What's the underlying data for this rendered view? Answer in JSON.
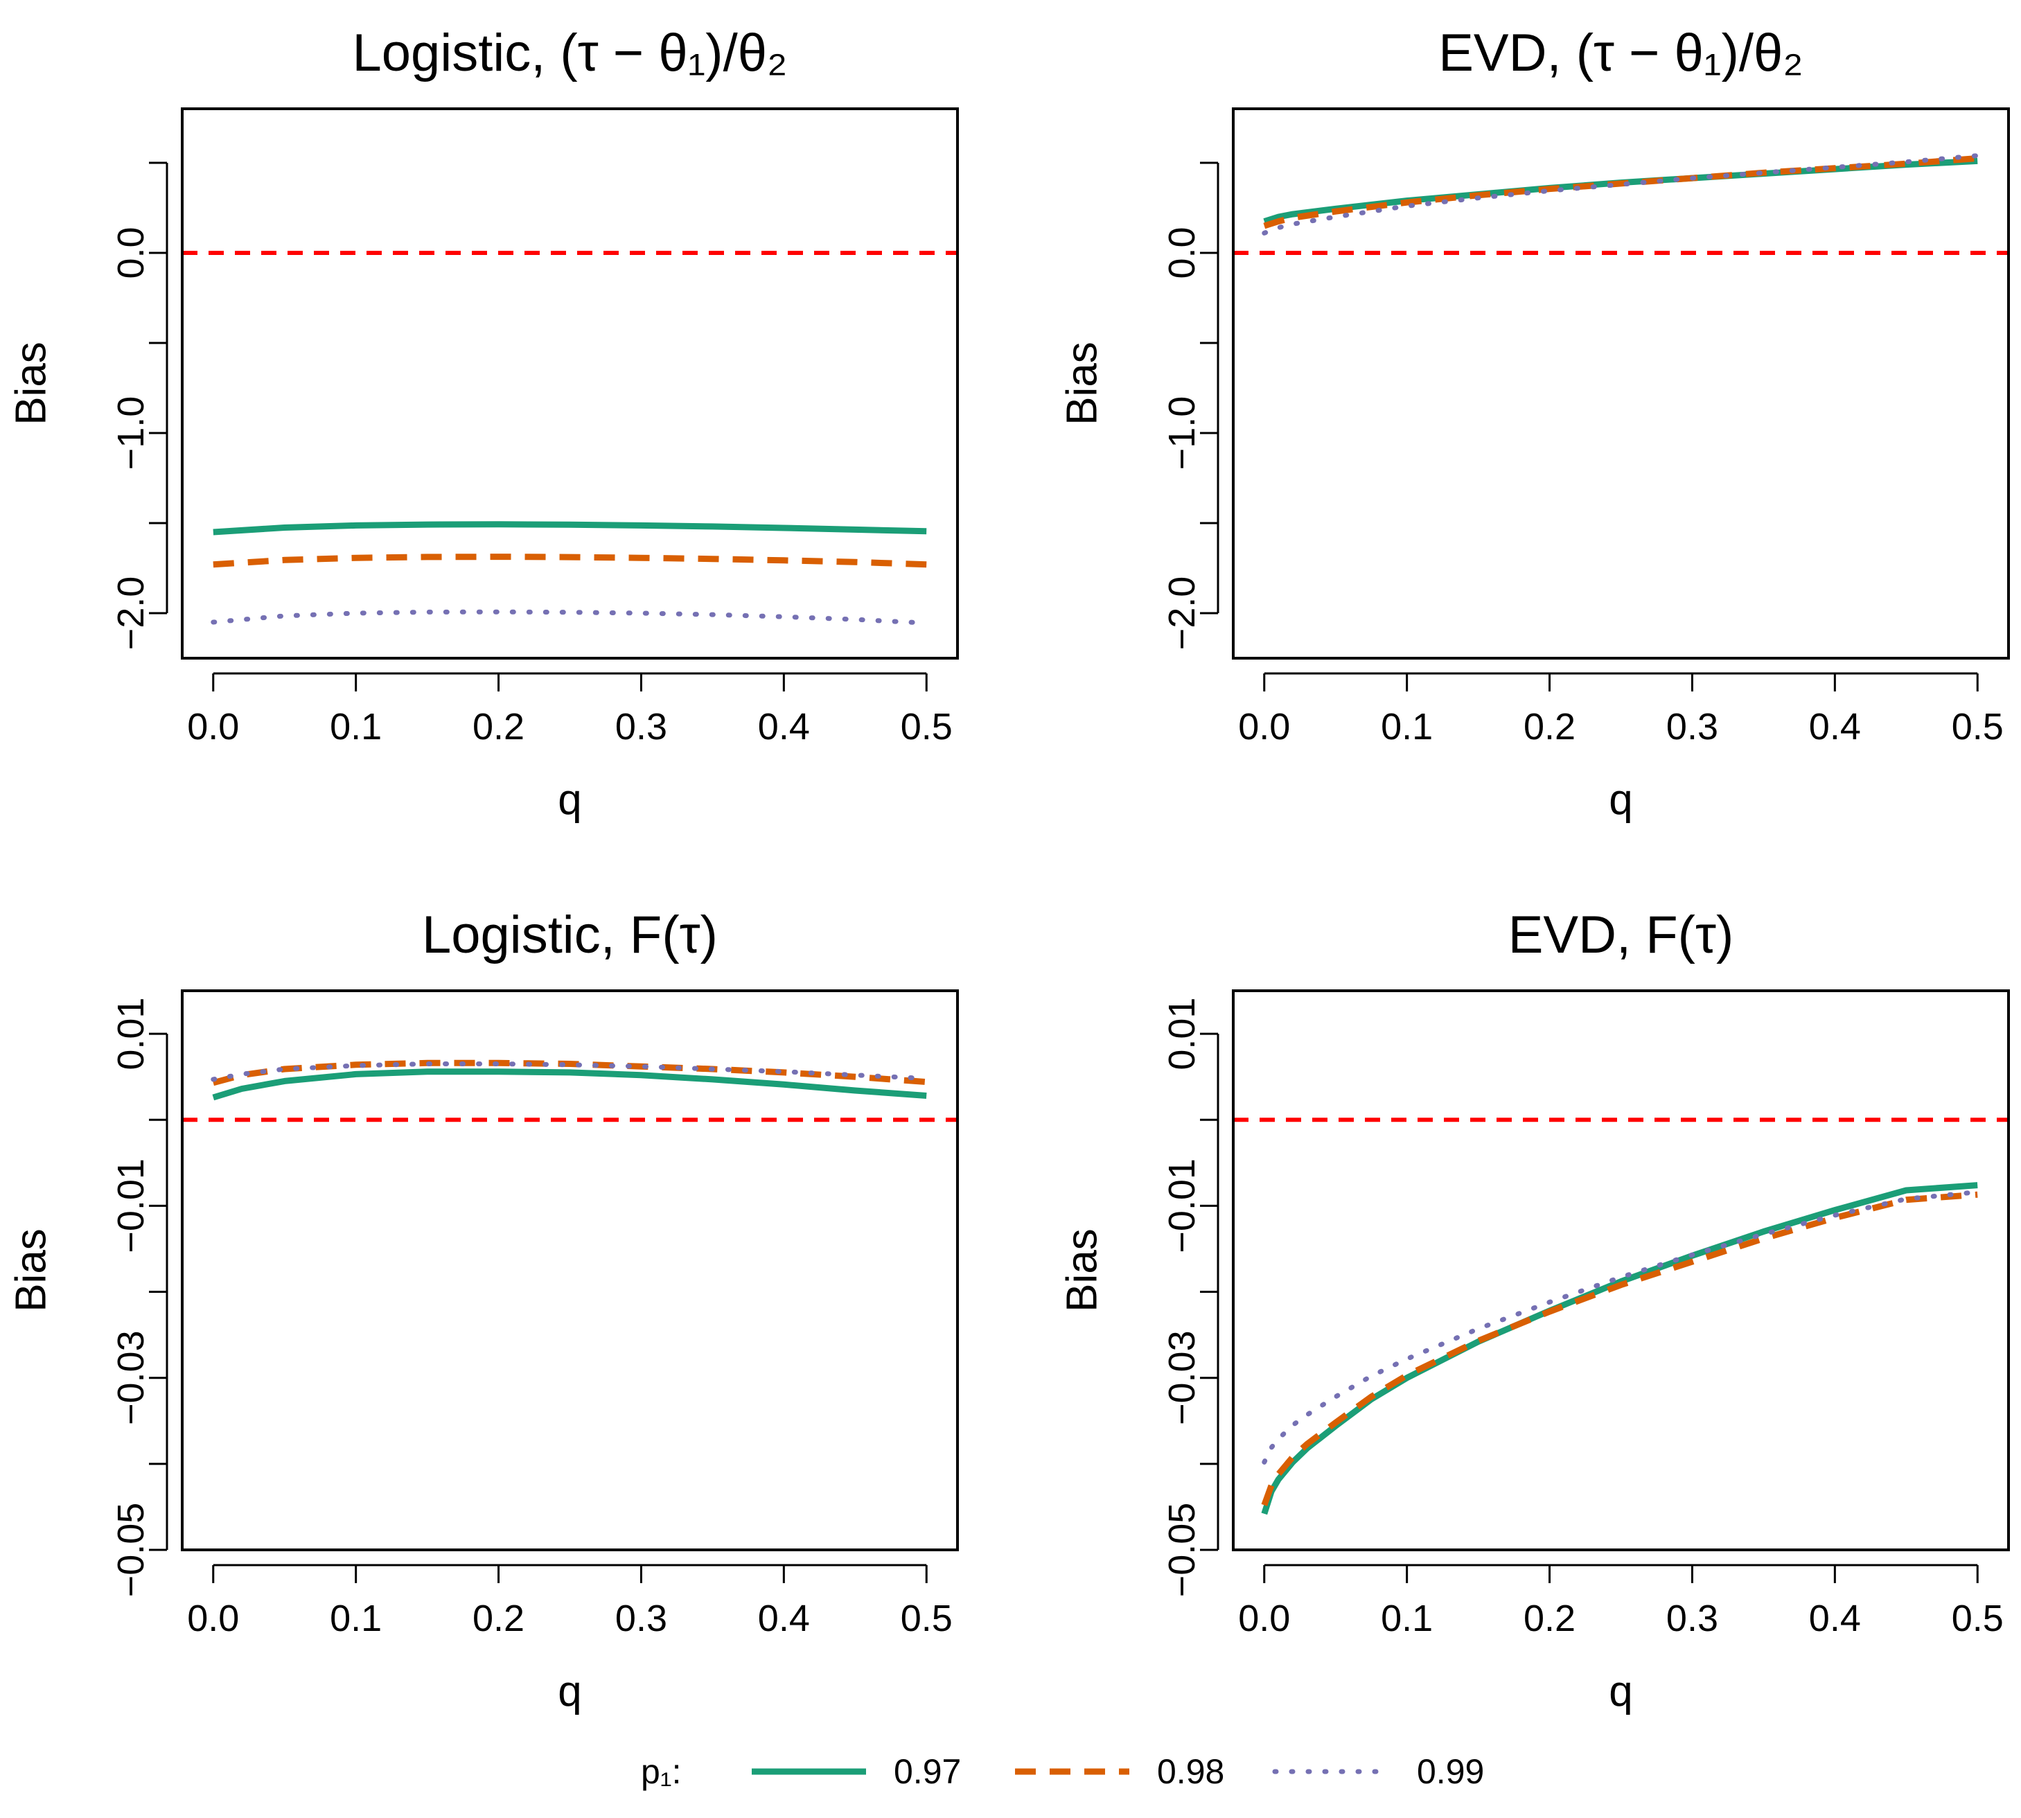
{
  "chart_data": [
    {
      "type": "line",
      "title": "Logistic, (τ − θ₁)/θ₂",
      "title_parts": {
        "prefix": "Logistic, ",
        "math": "(τ − θ₁)/θ₂"
      },
      "xlabel": "q",
      "ylabel": "Bias",
      "xlim": [
        0,
        0.5
      ],
      "ylim": [
        -2.25,
        0.8
      ],
      "xticks": [
        0.0,
        0.1,
        0.2,
        0.3,
        0.4,
        0.5
      ],
      "xtick_labels": [
        "0.0",
        "0.1",
        "0.2",
        "0.3",
        "0.4",
        "0.5"
      ],
      "yticks": [
        -2.0,
        -1.5,
        -1.0,
        -0.5,
        0.0,
        0.5
      ],
      "ytick_labels": [
        "−2.0",
        "",
        "−1.0",
        "",
        "0.0",
        ""
      ],
      "reference_line": 0,
      "x": [
        0.0,
        0.05,
        0.1,
        0.15,
        0.2,
        0.25,
        0.3,
        0.35,
        0.4,
        0.45,
        0.5
      ],
      "series": [
        {
          "name": "0.97",
          "values": [
            -1.55,
            -1.525,
            -1.513,
            -1.508,
            -1.507,
            -1.509,
            -1.513,
            -1.519,
            -1.527,
            -1.536,
            -1.545
          ]
        },
        {
          "name": "0.98",
          "values": [
            -1.73,
            -1.705,
            -1.693,
            -1.688,
            -1.687,
            -1.689,
            -1.693,
            -1.699,
            -1.707,
            -1.716,
            -1.73
          ]
        },
        {
          "name": "0.99",
          "values": [
            -2.05,
            -2.015,
            -2.0,
            -1.994,
            -1.993,
            -1.995,
            -2.0,
            -2.008,
            -2.02,
            -2.035,
            -2.055
          ]
        }
      ]
    },
    {
      "type": "line",
      "title": "EVD, (τ − θ₁)/θ₂",
      "title_parts": {
        "prefix": "EVD, ",
        "math": "(τ − θ₁)/θ₂"
      },
      "xlabel": "q",
      "ylabel": "Bias",
      "xlim": [
        0,
        0.5
      ],
      "ylim": [
        -2.25,
        0.8
      ],
      "xticks": [
        0.0,
        0.1,
        0.2,
        0.3,
        0.4,
        0.5
      ],
      "xtick_labels": [
        "0.0",
        "0.1",
        "0.2",
        "0.3",
        "0.4",
        "0.5"
      ],
      "yticks": [
        -2.0,
        -1.5,
        -1.0,
        -0.5,
        0.0,
        0.5
      ],
      "ytick_labels": [
        "−2.0",
        "",
        "−1.0",
        "",
        "0.0",
        ""
      ],
      "reference_line": 0,
      "x": [
        0.0,
        0.01,
        0.02,
        0.05,
        0.1,
        0.15,
        0.2,
        0.25,
        0.3,
        0.35,
        0.4,
        0.45,
        0.5
      ],
      "series": [
        {
          "name": "0.97",
          "values": [
            0.175,
            0.2,
            0.215,
            0.245,
            0.29,
            0.325,
            0.36,
            0.39,
            0.415,
            0.44,
            0.465,
            0.49,
            0.51
          ]
        },
        {
          "name": "0.98",
          "values": [
            0.15,
            0.175,
            0.195,
            0.23,
            0.28,
            0.32,
            0.355,
            0.385,
            0.415,
            0.445,
            0.47,
            0.495,
            0.525
          ]
        },
        {
          "name": "0.99",
          "values": [
            0.11,
            0.14,
            0.16,
            0.2,
            0.26,
            0.305,
            0.345,
            0.38,
            0.415,
            0.445,
            0.475,
            0.505,
            0.54
          ]
        }
      ]
    },
    {
      "type": "line",
      "title": "Logistic, F(τ)",
      "title_parts": {
        "prefix": "Logistic, ",
        "math": "F(τ)"
      },
      "xlabel": "q",
      "ylabel": "Bias",
      "xlim": [
        0,
        0.5
      ],
      "ylim": [
        -0.05,
        0.015
      ],
      "xticks": [
        0.0,
        0.1,
        0.2,
        0.3,
        0.4,
        0.5
      ],
      "xtick_labels": [
        "0.0",
        "0.1",
        "0.2",
        "0.3",
        "0.4",
        "0.5"
      ],
      "yticks": [
        -0.05,
        -0.04,
        -0.03,
        -0.02,
        -0.01,
        0.0,
        0.01
      ],
      "ytick_labels": [
        "−0.05",
        "",
        "−0.03",
        "",
        "−0.01",
        "",
        "0.01"
      ],
      "reference_line": 0,
      "x": [
        0.0,
        0.02,
        0.05,
        0.1,
        0.15,
        0.2,
        0.25,
        0.3,
        0.35,
        0.4,
        0.45,
        0.5
      ],
      "series": [
        {
          "name": "0.97",
          "values": [
            0.0026,
            0.0036,
            0.0045,
            0.0053,
            0.0056,
            0.0056,
            0.0055,
            0.0052,
            0.0047,
            0.0041,
            0.0034,
            0.0028
          ]
        },
        {
          "name": "0.98",
          "values": [
            0.0043,
            0.0052,
            0.0059,
            0.0064,
            0.0066,
            0.0066,
            0.0065,
            0.0062,
            0.0059,
            0.0055,
            0.005,
            0.0044
          ]
        },
        {
          "name": "0.99",
          "values": [
            0.0047,
            0.0053,
            0.0059,
            0.0063,
            0.0065,
            0.0065,
            0.0064,
            0.0062,
            0.0059,
            0.0056,
            0.0052,
            0.0048
          ]
        }
      ]
    },
    {
      "type": "line",
      "title": "EVD, F(τ)",
      "title_parts": {
        "prefix": "EVD, ",
        "math": "F(τ)"
      },
      "xlabel": "q",
      "ylabel": "Bias",
      "xlim": [
        0,
        0.5
      ],
      "ylim": [
        -0.05,
        0.015
      ],
      "xticks": [
        0.0,
        0.1,
        0.2,
        0.3,
        0.4,
        0.5
      ],
      "xtick_labels": [
        "0.0",
        "0.1",
        "0.2",
        "0.3",
        "0.4",
        "0.5"
      ],
      "yticks": [
        -0.05,
        -0.04,
        -0.03,
        -0.02,
        -0.01,
        0.0,
        0.01
      ],
      "ytick_labels": [
        "−0.05",
        "",
        "−0.03",
        "",
        "−0.01",
        "",
        "0.01"
      ],
      "reference_line": 0,
      "x": [
        0.0,
        0.005,
        0.01,
        0.02,
        0.03,
        0.05,
        0.075,
        0.1,
        0.15,
        0.2,
        0.25,
        0.3,
        0.35,
        0.4,
        0.45,
        0.5
      ],
      "series": [
        {
          "name": "0.97",
          "values": [
            -0.0458,
            -0.0432,
            -0.0418,
            -0.0398,
            -0.0382,
            -0.0356,
            -0.0325,
            -0.03,
            -0.0258,
            -0.0222,
            -0.0188,
            -0.0158,
            -0.013,
            -0.0105,
            -0.0082,
            -0.0076
          ]
        },
        {
          "name": "0.98",
          "values": [
            -0.0448,
            -0.0425,
            -0.0412,
            -0.0392,
            -0.0377,
            -0.0352,
            -0.0322,
            -0.0297,
            -0.0257,
            -0.0223,
            -0.0192,
            -0.0165,
            -0.0138,
            -0.0114,
            -0.0093,
            -0.0087
          ]
        },
        {
          "name": "0.99",
          "values": [
            -0.0398,
            -0.0381,
            -0.0371,
            -0.0355,
            -0.0343,
            -0.0322,
            -0.0298,
            -0.0278,
            -0.0243,
            -0.0212,
            -0.0183,
            -0.0157,
            -0.0133,
            -0.0111,
            -0.0092,
            -0.0084
          ]
        }
      ]
    }
  ],
  "legend": {
    "label": "p₁:",
    "entries": [
      {
        "name": "0.97",
        "color": "#1b9e77",
        "style": "solid"
      },
      {
        "name": "0.98",
        "color": "#d95f02",
        "style": "dashed"
      },
      {
        "name": "0.99",
        "color": "#7570b3",
        "style": "dotted"
      }
    ]
  },
  "colors": {
    "series_0.97": "#1b9e77",
    "series_0.98": "#d95f02",
    "series_0.99": "#7570b3",
    "reference": "#ff0000"
  }
}
